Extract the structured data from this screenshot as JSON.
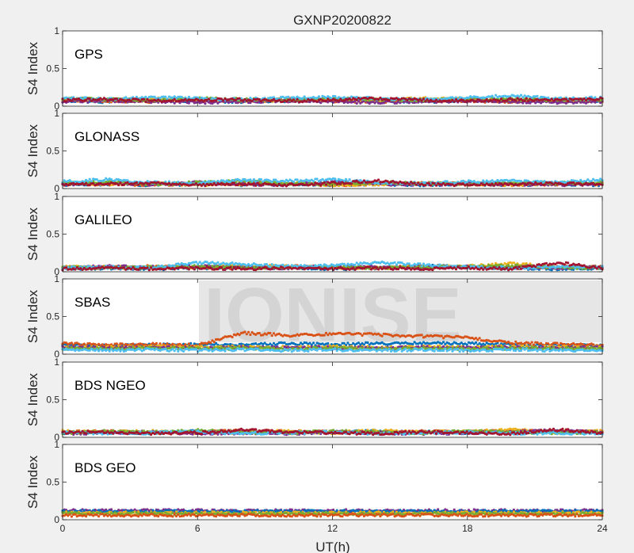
{
  "chart_data": {
    "type": "scatter",
    "title": "GXNP20200822",
    "xlabel": "UT(h)",
    "ylabel": "S4 Index",
    "xlim": [
      0,
      24
    ],
    "ylim": [
      0,
      1
    ],
    "x_ticks": [
      "0",
      "6",
      "12",
      "18",
      "24"
    ],
    "y_ticks": [
      "0",
      "0.5",
      "1"
    ],
    "watermark": "IONISE",
    "panels": [
      {
        "name": "GPS",
        "series": [
          {
            "color": "#0072BD",
            "values": [
              0.07,
              0.06,
              0.08,
              0.07,
              0.06,
              0.07,
              0.08,
              0.07,
              0.06,
              0.08,
              0.07,
              0.06,
              0.07
            ]
          },
          {
            "color": "#D95319",
            "values": [
              0.08,
              0.07,
              0.06,
              0.08,
              0.07,
              0.09,
              0.07,
              0.06,
              0.08,
              0.07,
              0.06,
              0.08,
              0.07
            ]
          },
          {
            "color": "#EDB120",
            "values": [
              0.09,
              0.08,
              0.1,
              0.08,
              0.07,
              0.08,
              0.09,
              0.08,
              0.1,
              0.09,
              0.08,
              0.09,
              0.08
            ]
          },
          {
            "color": "#7E2F8E",
            "values": [
              0.06,
              0.07,
              0.06,
              0.05,
              0.06,
              0.07,
              0.06,
              0.05,
              0.06,
              0.07,
              0.06,
              0.05,
              0.06
            ]
          },
          {
            "color": "#77AC30",
            "values": [
              0.1,
              0.09,
              0.08,
              0.1,
              0.09,
              0.08,
              0.1,
              0.09,
              0.08,
              0.1,
              0.09,
              0.08,
              0.09
            ]
          },
          {
            "color": "#4DBEEE",
            "values": [
              0.11,
              0.09,
              0.12,
              0.1,
              0.09,
              0.11,
              0.12,
              0.1,
              0.09,
              0.11,
              0.14,
              0.1,
              0.11
            ]
          },
          {
            "color": "#A2142F",
            "values": [
              0.08,
              0.09,
              0.07,
              0.08,
              0.09,
              0.07,
              0.08,
              0.1,
              0.08,
              0.07,
              0.09,
              0.08,
              0.1
            ]
          }
        ]
      },
      {
        "name": "GLONASS",
        "series": [
          {
            "color": "#0072BD",
            "values": [
              0.05,
              0.06,
              0.05,
              0.06,
              0.05,
              0.06,
              0.05,
              0.06,
              0.05,
              0.06,
              0.05,
              0.06,
              0.05
            ]
          },
          {
            "color": "#D95319",
            "values": [
              0.07,
              0.06,
              0.05,
              0.06,
              0.07,
              0.06,
              0.05,
              0.06,
              0.07,
              0.06,
              0.05,
              0.06,
              0.07
            ]
          },
          {
            "color": "#EDB120",
            "values": [
              0.08,
              0.06,
              0.07,
              0.05,
              0.06,
              0.07,
              0.05,
              0.06,
              0.07,
              0.06,
              0.05,
              0.07,
              0.06
            ]
          },
          {
            "color": "#7E2F8E",
            "values": [
              0.06,
              0.07,
              0.05,
              0.08,
              0.06,
              0.05,
              0.09,
              0.06,
              0.05,
              0.07,
              0.06,
              0.05,
              0.06
            ]
          },
          {
            "color": "#77AC30",
            "values": [
              0.07,
              0.09,
              0.06,
              0.08,
              0.1,
              0.07,
              0.06,
              0.08,
              0.07,
              0.06,
              0.08,
              0.07,
              0.08
            ]
          },
          {
            "color": "#4DBEEE",
            "values": [
              0.09,
              0.12,
              0.08,
              0.07,
              0.11,
              0.1,
              0.12,
              0.08,
              0.07,
              0.09,
              0.1,
              0.08,
              0.12
            ]
          },
          {
            "color": "#A2142F",
            "values": [
              0.05,
              0.06,
              0.07,
              0.05,
              0.06,
              0.05,
              0.07,
              0.1,
              0.06,
              0.05,
              0.06,
              0.07,
              0.05
            ]
          }
        ]
      },
      {
        "name": "GALILEO",
        "series": [
          {
            "color": "#0072BD",
            "values": [
              0.04,
              0.05,
              0.04,
              0.05,
              0.06,
              0.05,
              0.04,
              0.05,
              0.08,
              0.06,
              0.05,
              0.04,
              0.05
            ]
          },
          {
            "color": "#D95319",
            "values": [
              0.06,
              0.05,
              0.07,
              0.06,
              0.05,
              0.07,
              0.06,
              0.05,
              0.07,
              0.06,
              0.05,
              0.07,
              0.06
            ]
          },
          {
            "color": "#EDB120",
            "values": [
              0.07,
              0.06,
              0.05,
              0.06,
              0.08,
              0.07,
              0.06,
              0.05,
              0.06,
              0.07,
              0.11,
              0.06,
              0.07
            ]
          },
          {
            "color": "#7E2F8E",
            "values": [
              0.05,
              0.07,
              0.06,
              0.08,
              0.06,
              0.05,
              0.07,
              0.06,
              0.05,
              0.07,
              0.06,
              0.05,
              0.06
            ]
          },
          {
            "color": "#77AC30",
            "values": [
              0.06,
              0.05,
              0.06,
              0.07,
              0.05,
              0.06,
              0.07,
              0.05,
              0.06,
              0.07,
              0.08,
              0.06,
              0.05
            ]
          },
          {
            "color": "#4DBEEE",
            "values": [
              0.05,
              0.06,
              0.05,
              0.12,
              0.1,
              0.07,
              0.08,
              0.12,
              0.09,
              0.06,
              0.05,
              0.07,
              0.06
            ]
          },
          {
            "color": "#A2142F",
            "values": [
              0.04,
              0.05,
              0.04,
              0.05,
              0.04,
              0.05,
              0.04,
              0.05,
              0.04,
              0.05,
              0.04,
              0.12,
              0.05
            ]
          }
        ]
      },
      {
        "name": "SBAS",
        "series": [
          {
            "color": "#0072BD",
            "values": [
              0.12,
              0.11,
              0.12,
              0.13,
              0.12,
              0.14,
              0.13,
              0.14,
              0.15,
              0.14,
              0.13,
              0.12,
              0.12
            ]
          },
          {
            "color": "#D95319",
            "values": [
              0.14,
              0.12,
              0.13,
              0.12,
              0.28,
              0.25,
              0.27,
              0.26,
              0.24,
              0.22,
              0.15,
              0.13,
              0.12
            ]
          },
          {
            "color": "#EDB120",
            "values": [
              0.1,
              0.09,
              0.1,
              0.09,
              0.1,
              0.09,
              0.1,
              0.09,
              0.1,
              0.09,
              0.1,
              0.09,
              0.1
            ]
          },
          {
            "color": "#7E2F8E",
            "values": [
              0.09,
              0.08,
              0.09,
              0.08,
              0.09,
              0.08,
              0.09,
              0.08,
              0.09,
              0.08,
              0.09,
              0.08,
              0.09
            ]
          },
          {
            "color": "#77AC30",
            "values": [
              0.08,
              0.07,
              0.08,
              0.07,
              0.08,
              0.07,
              0.08,
              0.07,
              0.08,
              0.07,
              0.08,
              0.07,
              0.08
            ]
          },
          {
            "color": "#4DBEEE",
            "values": [
              0.06,
              0.05,
              0.06,
              0.05,
              0.06,
              0.05,
              0.06,
              0.05,
              0.06,
              0.05,
              0.06,
              0.05,
              0.06
            ]
          }
        ]
      },
      {
        "name": "BDS NGEO",
        "series": [
          {
            "color": "#0072BD",
            "values": [
              0.06,
              0.07,
              0.06,
              0.08,
              0.07,
              0.06,
              0.07,
              0.08,
              0.07,
              0.06,
              0.07,
              0.08,
              0.06
            ]
          },
          {
            "color": "#D95319",
            "values": [
              0.07,
              0.08,
              0.06,
              0.07,
              0.09,
              0.08,
              0.07,
              0.06,
              0.08,
              0.07,
              0.09,
              0.08,
              0.07
            ]
          },
          {
            "color": "#EDB120",
            "values": [
              0.08,
              0.07,
              0.08,
              0.06,
              0.07,
              0.08,
              0.06,
              0.09,
              0.07,
              0.08,
              0.1,
              0.07,
              0.08
            ]
          },
          {
            "color": "#7E2F8E",
            "values": [
              0.05,
              0.06,
              0.07,
              0.05,
              0.06,
              0.05,
              0.07,
              0.06,
              0.05,
              0.06,
              0.07,
              0.09,
              0.06
            ]
          },
          {
            "color": "#77AC30",
            "values": [
              0.06,
              0.08,
              0.07,
              0.09,
              0.07,
              0.06,
              0.08,
              0.07,
              0.06,
              0.08,
              0.07,
              0.06,
              0.07
            ]
          },
          {
            "color": "#4DBEEE",
            "values": [
              0.07,
              0.05,
              0.06,
              0.07,
              0.05,
              0.06,
              0.07,
              0.05,
              0.06,
              0.07,
              0.05,
              0.06,
              0.05
            ]
          },
          {
            "color": "#A2142F",
            "values": [
              0.06,
              0.07,
              0.05,
              0.06,
              0.1,
              0.07,
              0.06,
              0.05,
              0.07,
              0.06,
              0.05,
              0.1,
              0.06
            ]
          }
        ]
      },
      {
        "name": "BDS GEO",
        "series": [
          {
            "color": "#7E2F8E",
            "values": [
              0.12,
              0.12,
              0.12,
              0.12,
              0.12,
              0.12,
              0.12,
              0.12,
              0.12,
              0.12,
              0.12,
              0.12,
              0.12
            ]
          },
          {
            "color": "#0072BD",
            "values": [
              0.11,
              0.11,
              0.11,
              0.11,
              0.11,
              0.11,
              0.11,
              0.11,
              0.11,
              0.11,
              0.11,
              0.11,
              0.11
            ]
          },
          {
            "color": "#EDB120",
            "values": [
              0.09,
              0.09,
              0.09,
              0.09,
              0.09,
              0.09,
              0.09,
              0.09,
              0.09,
              0.09,
              0.09,
              0.09,
              0.09
            ]
          },
          {
            "color": "#77AC30",
            "values": [
              0.08,
              0.08,
              0.08,
              0.08,
              0.08,
              0.08,
              0.08,
              0.08,
              0.08,
              0.08,
              0.08,
              0.08,
              0.08
            ]
          },
          {
            "color": "#D95319",
            "values": [
              0.06,
              0.06,
              0.06,
              0.06,
              0.06,
              0.06,
              0.06,
              0.06,
              0.06,
              0.06,
              0.06,
              0.06,
              0.06
            ]
          }
        ]
      }
    ]
  }
}
